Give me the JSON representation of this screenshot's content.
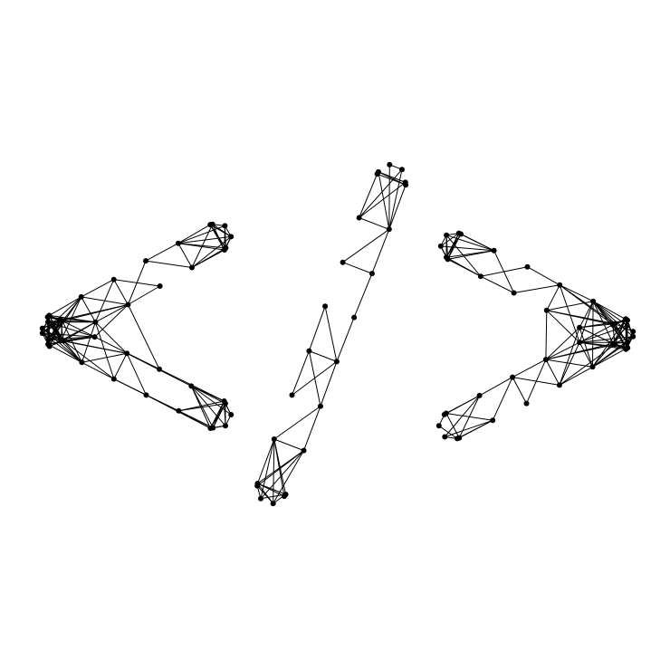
{
  "icon": {
    "name": "code-brackets-icon",
    "symbol_sequence": [
      "<",
      "/",
      ">"
    ]
  },
  "colors": {
    "background": "#ffffff",
    "stroke": "#000000",
    "nodes": "#000000"
  }
}
